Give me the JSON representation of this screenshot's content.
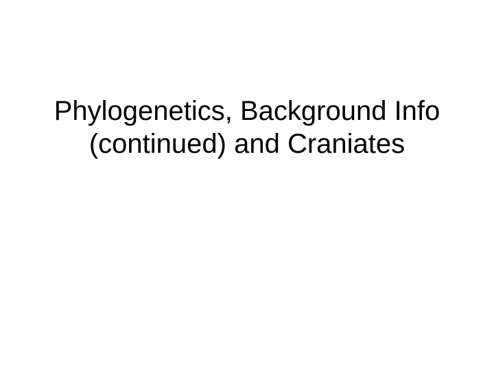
{
  "slide": {
    "title": "Phylogenetics, Background Info (continued) and Craniates",
    "background_color": "#ffffff",
    "title_color": "#000000",
    "title_fontsize": 40,
    "title_font_family": "Arial"
  }
}
